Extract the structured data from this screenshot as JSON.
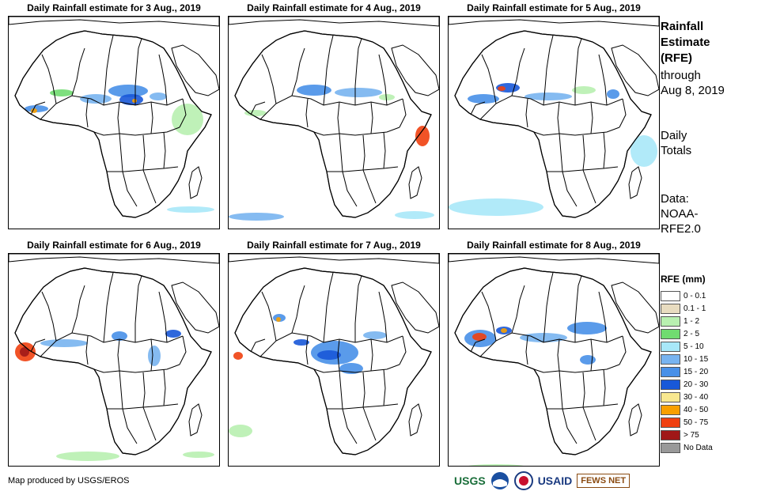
{
  "panels": [
    {
      "title": "Daily Rainfall estimate for 3 Aug., 2019"
    },
    {
      "title": "Daily Rainfall estimate for 4 Aug., 2019"
    },
    {
      "title": "Daily Rainfall estimate for 5 Aug., 2019"
    },
    {
      "title": "Daily Rainfall estimate for 6 Aug., 2019"
    },
    {
      "title": "Daily Rainfall estimate for 7 Aug., 2019"
    },
    {
      "title": "Daily Rainfall estimate for 8 Aug., 2019"
    }
  ],
  "side": {
    "title_line1": "Rainfall",
    "title_line2": "Estimate",
    "title_line3": "(RFE)",
    "through_line1": "through",
    "through_line2": "Aug 8, 2019",
    "totals_line1": "Daily",
    "totals_line2": "Totals",
    "data_line1": "Data:",
    "data_line2": "NOAA-",
    "data_line3": "RFE2.0"
  },
  "legend": {
    "title": "RFE (mm)",
    "items": [
      {
        "label": "0 - 0.1",
        "color": "#ffffff"
      },
      {
        "label": "0.1 - 1",
        "color": "#e8dcc0"
      },
      {
        "label": "1 - 2",
        "color": "#b8f0b0"
      },
      {
        "label": "2 - 5",
        "color": "#70dc70"
      },
      {
        "label": "5 - 10",
        "color": "#a8e8f8"
      },
      {
        "label": "10 - 15",
        "color": "#78b4f0"
      },
      {
        "label": "15 - 20",
        "color": "#4890e8"
      },
      {
        "label": "20 - 30",
        "color": "#1858d8"
      },
      {
        "label": "30 - 40",
        "color": "#f8e890"
      },
      {
        "label": "40 - 50",
        "color": "#f8a000"
      },
      {
        "label": "50 - 75",
        "color": "#f04010"
      },
      {
        "label": "> 75",
        "color": "#a01818"
      },
      {
        "label": "No Data",
        "color": "#999999"
      }
    ]
  },
  "credit": "Map produced by USGS/EROS",
  "logos": {
    "usgs": "USGS",
    "usaid": "USAID",
    "fewsnet": "FEWS NET"
  }
}
